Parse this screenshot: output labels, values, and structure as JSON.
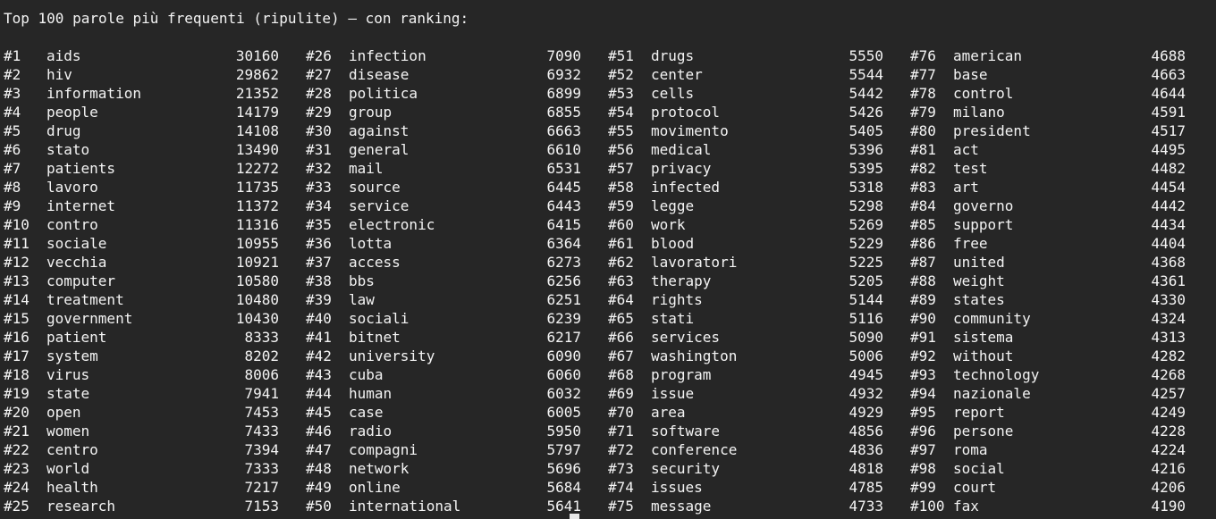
{
  "terminal": {
    "title": "Top 100 parole più frequenti (ripulite) — con ranking:",
    "colors": {
      "background": "#262626",
      "text": "#f4f4f4",
      "cursor": "#e8e8e8"
    }
  },
  "entries": [
    {
      "rank": "#1",
      "word": "aids",
      "count": 30160
    },
    {
      "rank": "#2",
      "word": "hiv",
      "count": 29862
    },
    {
      "rank": "#3",
      "word": "information",
      "count": 21352
    },
    {
      "rank": "#4",
      "word": "people",
      "count": 14179
    },
    {
      "rank": "#5",
      "word": "drug",
      "count": 14108
    },
    {
      "rank": "#6",
      "word": "stato",
      "count": 13490
    },
    {
      "rank": "#7",
      "word": "patients",
      "count": 12272
    },
    {
      "rank": "#8",
      "word": "lavoro",
      "count": 11735
    },
    {
      "rank": "#9",
      "word": "internet",
      "count": 11372
    },
    {
      "rank": "#10",
      "word": "contro",
      "count": 11316
    },
    {
      "rank": "#11",
      "word": "sociale",
      "count": 10955
    },
    {
      "rank": "#12",
      "word": "vecchia",
      "count": 10921
    },
    {
      "rank": "#13",
      "word": "computer",
      "count": 10580
    },
    {
      "rank": "#14",
      "word": "treatment",
      "count": 10480
    },
    {
      "rank": "#15",
      "word": "government",
      "count": 10430
    },
    {
      "rank": "#16",
      "word": "patient",
      "count": 8333
    },
    {
      "rank": "#17",
      "word": "system",
      "count": 8202
    },
    {
      "rank": "#18",
      "word": "virus",
      "count": 8006
    },
    {
      "rank": "#19",
      "word": "state",
      "count": 7941
    },
    {
      "rank": "#20",
      "word": "open",
      "count": 7453
    },
    {
      "rank": "#21",
      "word": "women",
      "count": 7433
    },
    {
      "rank": "#22",
      "word": "centro",
      "count": 7394
    },
    {
      "rank": "#23",
      "word": "world",
      "count": 7333
    },
    {
      "rank": "#24",
      "word": "health",
      "count": 7217
    },
    {
      "rank": "#25",
      "word": "research",
      "count": 7153
    },
    {
      "rank": "#26",
      "word": "infection",
      "count": 7090
    },
    {
      "rank": "#27",
      "word": "disease",
      "count": 6932
    },
    {
      "rank": "#28",
      "word": "politica",
      "count": 6899
    },
    {
      "rank": "#29",
      "word": "group",
      "count": 6855
    },
    {
      "rank": "#30",
      "word": "against",
      "count": 6663
    },
    {
      "rank": "#31",
      "word": "general",
      "count": 6610
    },
    {
      "rank": "#32",
      "word": "mail",
      "count": 6531
    },
    {
      "rank": "#33",
      "word": "source",
      "count": 6445
    },
    {
      "rank": "#34",
      "word": "service",
      "count": 6443
    },
    {
      "rank": "#35",
      "word": "electronic",
      "count": 6415
    },
    {
      "rank": "#36",
      "word": "lotta",
      "count": 6364
    },
    {
      "rank": "#37",
      "word": "access",
      "count": 6273
    },
    {
      "rank": "#38",
      "word": "bbs",
      "count": 6256
    },
    {
      "rank": "#39",
      "word": "law",
      "count": 6251
    },
    {
      "rank": "#40",
      "word": "sociali",
      "count": 6239
    },
    {
      "rank": "#41",
      "word": "bitnet",
      "count": 6217
    },
    {
      "rank": "#42",
      "word": "university",
      "count": 6090
    },
    {
      "rank": "#43",
      "word": "cuba",
      "count": 6060
    },
    {
      "rank": "#44",
      "word": "human",
      "count": 6032
    },
    {
      "rank": "#45",
      "word": "case",
      "count": 6005
    },
    {
      "rank": "#46",
      "word": "radio",
      "count": 5950
    },
    {
      "rank": "#47",
      "word": "compagni",
      "count": 5797
    },
    {
      "rank": "#48",
      "word": "network",
      "count": 5696
    },
    {
      "rank": "#49",
      "word": "online",
      "count": 5684
    },
    {
      "rank": "#50",
      "word": "international",
      "count": 5641
    },
    {
      "rank": "#51",
      "word": "drugs",
      "count": 5550
    },
    {
      "rank": "#52",
      "word": "center",
      "count": 5544
    },
    {
      "rank": "#53",
      "word": "cells",
      "count": 5442
    },
    {
      "rank": "#54",
      "word": "protocol",
      "count": 5426
    },
    {
      "rank": "#55",
      "word": "movimento",
      "count": 5405
    },
    {
      "rank": "#56",
      "word": "medical",
      "count": 5396
    },
    {
      "rank": "#57",
      "word": "privacy",
      "count": 5395
    },
    {
      "rank": "#58",
      "word": "infected",
      "count": 5318
    },
    {
      "rank": "#59",
      "word": "legge",
      "count": 5298
    },
    {
      "rank": "#60",
      "word": "work",
      "count": 5269
    },
    {
      "rank": "#61",
      "word": "blood",
      "count": 5229
    },
    {
      "rank": "#62",
      "word": "lavoratori",
      "count": 5225
    },
    {
      "rank": "#63",
      "word": "therapy",
      "count": 5205
    },
    {
      "rank": "#64",
      "word": "rights",
      "count": 5144
    },
    {
      "rank": "#65",
      "word": "stati",
      "count": 5116
    },
    {
      "rank": "#66",
      "word": "services",
      "count": 5090
    },
    {
      "rank": "#67",
      "word": "washington",
      "count": 5006
    },
    {
      "rank": "#68",
      "word": "program",
      "count": 4945
    },
    {
      "rank": "#69",
      "word": "issue",
      "count": 4932
    },
    {
      "rank": "#70",
      "word": "area",
      "count": 4929
    },
    {
      "rank": "#71",
      "word": "software",
      "count": 4856
    },
    {
      "rank": "#72",
      "word": "conference",
      "count": 4836
    },
    {
      "rank": "#73",
      "word": "security",
      "count": 4818
    },
    {
      "rank": "#74",
      "word": "issues",
      "count": 4785
    },
    {
      "rank": "#75",
      "word": "message",
      "count": 4733
    },
    {
      "rank": "#76",
      "word": "american",
      "count": 4688
    },
    {
      "rank": "#77",
      "word": "base",
      "count": 4663
    },
    {
      "rank": "#78",
      "word": "control",
      "count": 4644
    },
    {
      "rank": "#79",
      "word": "milano",
      "count": 4591
    },
    {
      "rank": "#80",
      "word": "president",
      "count": 4517
    },
    {
      "rank": "#81",
      "word": "act",
      "count": 4495
    },
    {
      "rank": "#82",
      "word": "test",
      "count": 4482
    },
    {
      "rank": "#83",
      "word": "art",
      "count": 4454
    },
    {
      "rank": "#84",
      "word": "governo",
      "count": 4442
    },
    {
      "rank": "#85",
      "word": "support",
      "count": 4434
    },
    {
      "rank": "#86",
      "word": "free",
      "count": 4404
    },
    {
      "rank": "#87",
      "word": "united",
      "count": 4368
    },
    {
      "rank": "#88",
      "word": "weight",
      "count": 4361
    },
    {
      "rank": "#89",
      "word": "states",
      "count": 4330
    },
    {
      "rank": "#90",
      "word": "community",
      "count": 4324
    },
    {
      "rank": "#91",
      "word": "sistema",
      "count": 4313
    },
    {
      "rank": "#92",
      "word": "without",
      "count": 4282
    },
    {
      "rank": "#93",
      "word": "technology",
      "count": 4268
    },
    {
      "rank": "#94",
      "word": "nazionale",
      "count": 4257
    },
    {
      "rank": "#95",
      "word": "report",
      "count": 4249
    },
    {
      "rank": "#96",
      "word": "persone",
      "count": 4228
    },
    {
      "rank": "#97",
      "word": "roma",
      "count": 4224
    },
    {
      "rank": "#98",
      "word": "social",
      "count": 4216
    },
    {
      "rank": "#99",
      "word": "court",
      "count": 4206
    },
    {
      "rank": "#100",
      "word": "fax",
      "count": 4190
    }
  ]
}
